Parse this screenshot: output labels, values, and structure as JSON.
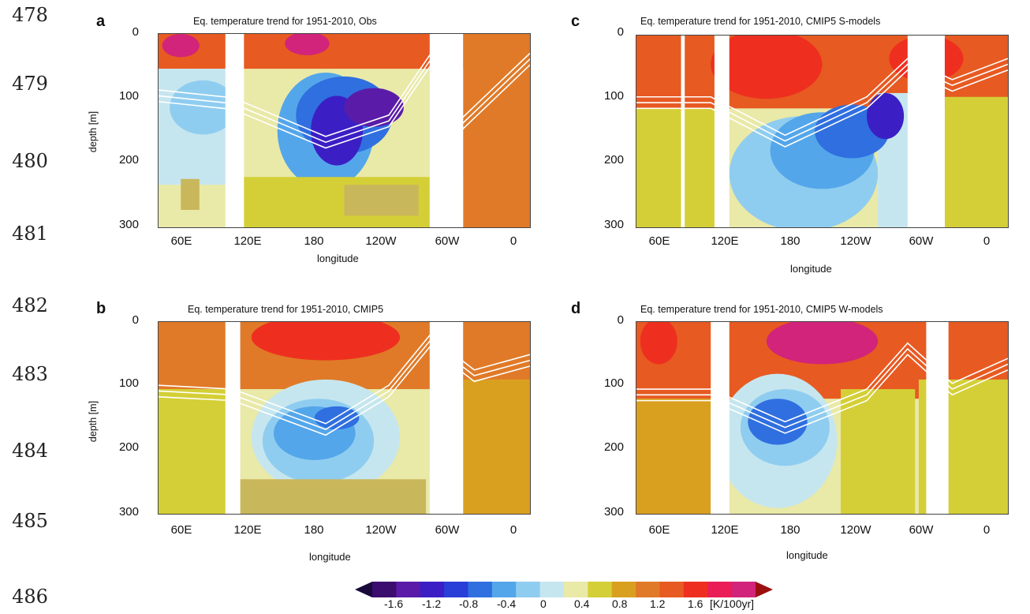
{
  "line_numbers": [
    "478",
    "479",
    "480",
    "481",
    "482",
    "483",
    "484",
    "485",
    "486"
  ],
  "panels": [
    {
      "letter": "a",
      "title": "Eq. temperature trend for 1951-2010, Obs",
      "variant": "obs"
    },
    {
      "letter": "c",
      "title": "Eq. temperature trend for 1951-2010, CMIP5 S-models",
      "variant": "s"
    },
    {
      "letter": "b",
      "title": "Eq. temperature trend for 1951-2010, CMIP5",
      "variant": "cmip"
    },
    {
      "letter": "d",
      "title": "Eq. temperature trend for 1951-2010, CMIP5 W-models",
      "variant": "w"
    }
  ],
  "axes": {
    "ylabel": "depth [m]",
    "xlabel": "longitude",
    "yticks": [
      "0",
      "100",
      "200",
      "300"
    ],
    "xticks": [
      "60E",
      "120E",
      "180",
      "120W",
      "60W",
      "0"
    ]
  },
  "colorbar": {
    "ticks": [
      "-1.6",
      "-1.2",
      "-0.8",
      "-0.4",
      "0",
      "0.4",
      "0.8",
      "1.2",
      "1.6"
    ],
    "unit": "[K/100yr]",
    "colors": [
      "#1a0a3c",
      "#3a0d6e",
      "#5a1ca8",
      "#3b1fc4",
      "#2a3ed8",
      "#2f6fe0",
      "#54a6ea",
      "#8fcdf0",
      "#c6e6ef",
      "#e9e9a8",
      "#d4cf36",
      "#d9a020",
      "#e07a28",
      "#e75a22",
      "#ee2f1f",
      "#ea1d56",
      "#d2247a",
      "#9c0f0f"
    ]
  },
  "chart_data": [
    {
      "type": "heatmap",
      "title": "Eq. temperature trend for 1951-2010, Obs",
      "xlabel": "longitude",
      "ylabel": "depth [m]",
      "ylim": [
        0,
        300
      ],
      "xticks": [
        "60E",
        "120E",
        "180",
        "120W",
        "60W",
        "0"
      ]
    },
    {
      "type": "heatmap",
      "title": "Eq. temperature trend for 1951-2010, CMIP5 S-models",
      "xlabel": "longitude",
      "ylabel": "depth [m]",
      "ylim": [
        0,
        300
      ],
      "xticks": [
        "60E",
        "120E",
        "180",
        "120W",
        "60W",
        "0"
      ]
    },
    {
      "type": "heatmap",
      "title": "Eq. temperature trend for 1951-2010, CMIP5",
      "xlabel": "longitude",
      "ylabel": "depth [m]",
      "ylim": [
        0,
        300
      ],
      "xticks": [
        "60E",
        "120E",
        "180",
        "120W",
        "60W",
        "0"
      ]
    },
    {
      "type": "heatmap",
      "title": "Eq. temperature trend for 1951-2010, CMIP5 W-models",
      "xlabel": "longitude",
      "ylabel": "depth [m]",
      "ylim": [
        0,
        300
      ],
      "xticks": [
        "60E",
        "120E",
        "180",
        "120W",
        "60W",
        "0"
      ]
    }
  ]
}
